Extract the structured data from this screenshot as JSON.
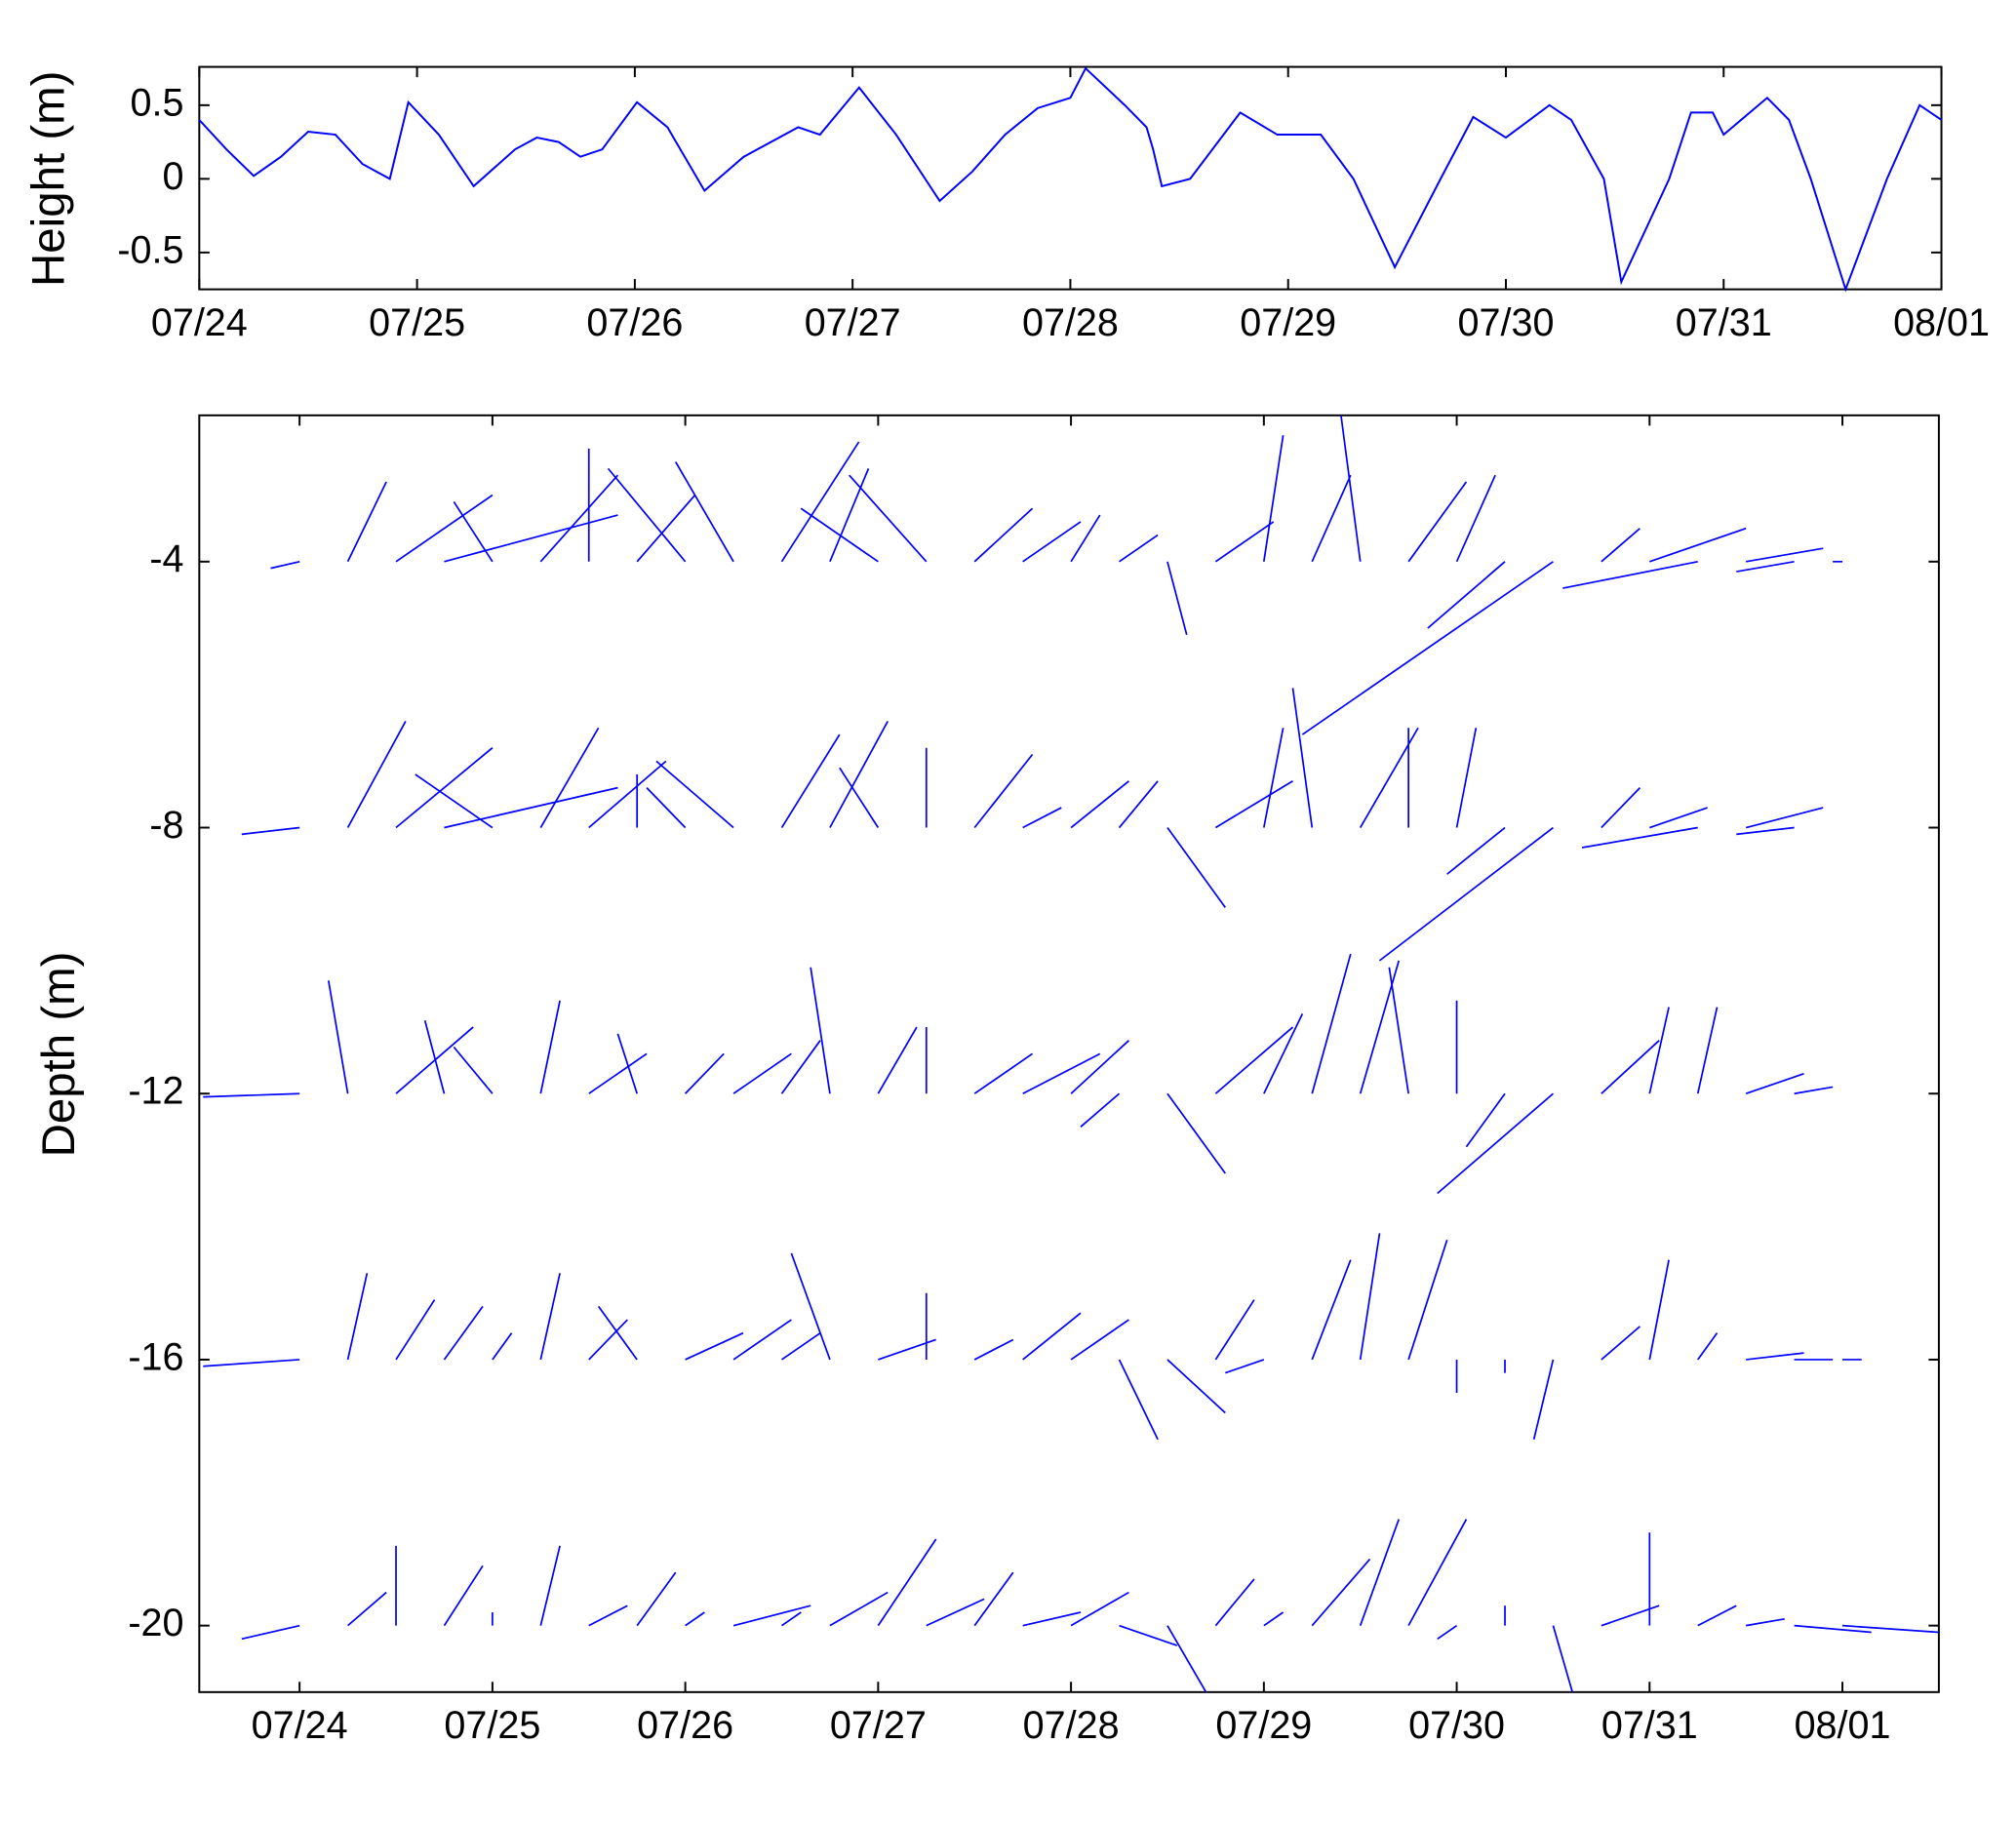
{
  "chart_data": [
    {
      "type": "line",
      "ylabel": "Height (m)",
      "color": "#0000ff",
      "x": [
        0,
        0.125,
        0.25,
        0.375,
        0.5,
        0.625,
        0.75,
        0.875,
        0.96,
        1.1,
        1.26,
        1.45,
        1.55,
        1.65,
        1.75,
        1.85,
        2.01,
        2.15,
        2.32,
        2.5,
        2.75,
        2.85,
        3.03,
        3.2,
        3.4,
        3.55,
        3.7,
        3.85,
        4.0,
        4.07,
        4.25,
        4.35,
        4.38,
        4.42,
        4.55,
        4.78,
        4.95,
        5.15,
        5.3,
        5.49,
        5.7,
        5.85,
        6.0,
        6.2,
        6.3,
        6.45,
        6.53,
        6.75,
        6.85,
        6.95,
        7.0,
        7.2,
        7.3,
        7.4,
        7.56,
        7.75,
        7.9,
        8.0
      ],
      "values": [
        0.4,
        0.2,
        0.02,
        0.15,
        0.32,
        0.3,
        0.1,
        0.0,
        0.52,
        0.3,
        -0.05,
        0.2,
        0.28,
        0.25,
        0.15,
        0.2,
        0.52,
        0.35,
        -0.08,
        0.15,
        0.35,
        0.3,
        0.62,
        0.3,
        -0.15,
        0.05,
        0.3,
        0.48,
        0.55,
        0.75,
        0.5,
        0.35,
        0.2,
        -0.05,
        0.0,
        0.45,
        0.3,
        0.3,
        0.0,
        -0.6,
        0.0,
        0.42,
        0.28,
        0.5,
        0.4,
        0.0,
        -0.7,
        0.0,
        0.45,
        0.45,
        0.3,
        0.55,
        0.4,
        0.0,
        -0.75,
        0.0,
        0.5,
        0.4
      ],
      "xlim": [
        0,
        8
      ],
      "ylim": [
        -0.75,
        0.76
      ],
      "yticks": [
        -0.5,
        0,
        0.5
      ],
      "xticks": [
        {
          "value": 0,
          "label": "07/24"
        },
        {
          "value": 1,
          "label": "07/25"
        },
        {
          "value": 2,
          "label": "07/26"
        },
        {
          "value": 3,
          "label": "07/27"
        },
        {
          "value": 4,
          "label": "07/28"
        },
        {
          "value": 5,
          "label": "07/29"
        },
        {
          "value": 6,
          "label": "07/30"
        },
        {
          "value": 7,
          "label": "07/31"
        },
        {
          "value": 8,
          "label": "08/01"
        }
      ]
    },
    {
      "type": "stick",
      "ylabel": "Depth (m)",
      "color": "#0000ff",
      "x": [
        0,
        0.25,
        0.5,
        0.75,
        1,
        1.25,
        1.5,
        1.75,
        2,
        2.25,
        2.5,
        2.75,
        3,
        3.25,
        3.5,
        3.75,
        4,
        4.25,
        4.5,
        4.75,
        5,
        5.25,
        5.5,
        5.75,
        6,
        6.25,
        6.5,
        6.75,
        7,
        7.25,
        7.5,
        7.75,
        8
      ],
      "series": [
        {
          "depth": -4,
          "u": [
            -0.15,
            0.2,
            0.5,
            0.9,
            -0.2,
            0.4,
            0.0,
            0.3,
            -0.4,
            -0.3,
            0.4,
            0.2,
            -0.4,
            -0.4,
            0.3,
            0.3,
            0.15,
            0.2,
            0.1,
            0.3,
            0.1,
            0.2,
            -0.1,
            0.3,
            0.2,
            -0.4,
            -1.3,
            0.2,
            0.5,
            -0.7,
            0.4,
            -0.3,
            -0.05
          ],
          "v": [
            -0.1,
            1.2,
            1.0,
            0.7,
            0.9,
            1.3,
            1.7,
            1.0,
            1.4,
            1.5,
            1.8,
            1.4,
            0.8,
            1.3,
            0.8,
            0.6,
            0.7,
            0.4,
            -1.1,
            0.6,
            1.9,
            1.3,
            2.2,
            1.2,
            1.3,
            -1.0,
            -2.6,
            0.5,
            0.5,
            -0.4,
            0.2,
            -0.15,
            0.0
          ]
        },
        {
          "depth": -8,
          "u": [
            -0.3,
            0.3,
            0.5,
            0.9,
            -0.4,
            0.3,
            0.4,
            0.0,
            -0.2,
            -0.4,
            0.3,
            0.3,
            -0.2,
            0.0,
            0.3,
            0.2,
            0.3,
            0.2,
            0.3,
            0.4,
            0.1,
            -0.1,
            0.3,
            0.0,
            0.1,
            -0.3,
            -0.9,
            0.2,
            0.3,
            -0.6,
            0.4,
            -0.3,
            0.0
          ],
          "v": [
            -0.1,
            1.6,
            1.2,
            0.6,
            0.8,
            1.5,
            1.0,
            0.8,
            0.6,
            1.0,
            1.4,
            1.6,
            0.9,
            1.2,
            1.1,
            0.3,
            0.7,
            0.7,
            -1.2,
            0.7,
            1.5,
            2.1,
            1.5,
            1.5,
            1.5,
            -0.7,
            -2.0,
            0.6,
            0.3,
            -0.3,
            0.3,
            -0.1,
            0.0
          ]
        },
        {
          "depth": -12,
          "u": [
            -0.5,
            -0.1,
            0.4,
            -0.1,
            -0.2,
            0.1,
            0.3,
            -0.1,
            0.2,
            0.3,
            0.2,
            -0.1,
            0.2,
            0.0,
            0.3,
            0.4,
            0.3,
            -0.2,
            0.3,
            0.4,
            0.2,
            0.2,
            0.2,
            -0.1,
            0.0,
            -0.2,
            -0.6,
            0.3,
            0.1,
            0.1,
            0.3,
            0.2,
            0.0
          ],
          "v": [
            -0.05,
            1.7,
            1.0,
            1.1,
            0.7,
            1.4,
            0.6,
            0.9,
            0.6,
            0.6,
            0.8,
            1.9,
            1.0,
            1.0,
            0.6,
            0.6,
            0.8,
            -0.5,
            -1.2,
            1.0,
            1.2,
            2.1,
            2.0,
            1.9,
            1.4,
            -0.8,
            -1.5,
            0.8,
            1.3,
            1.3,
            0.3,
            0.1,
            0.0
          ]
        },
        {
          "depth": -16,
          "u": [
            -0.5,
            0.1,
            0.2,
            0.2,
            0.1,
            0.1,
            0.2,
            -0.2,
            0.3,
            0.3,
            0.2,
            -0.2,
            0.3,
            0.0,
            0.2,
            0.3,
            0.3,
            0.2,
            0.3,
            0.2,
            -0.2,
            0.2,
            0.1,
            0.2,
            0.0,
            0.0,
            -0.1,
            0.2,
            0.1,
            0.1,
            0.3,
            0.2,
            0.1
          ],
          "v": [
            -0.1,
            1.3,
            0.9,
            0.8,
            0.4,
            1.3,
            0.6,
            0.8,
            0.4,
            0.6,
            0.4,
            1.6,
            0.3,
            1.0,
            0.3,
            0.7,
            0.6,
            -1.2,
            -0.8,
            0.9,
            -0.2,
            1.5,
            1.9,
            1.8,
            -0.5,
            -0.2,
            -1.2,
            0.5,
            1.5,
            0.4,
            0.1,
            0.0,
            0.0
          ]
        },
        {
          "depth": -20,
          "u": [
            -0.3,
            0.2,
            0.0,
            0.2,
            0.0,
            0.1,
            0.2,
            0.2,
            0.1,
            0.4,
            0.1,
            0.3,
            0.3,
            0.3,
            0.2,
            0.3,
            0.3,
            0.3,
            0.2,
            0.2,
            0.1,
            0.3,
            0.2,
            0.3,
            -0.1,
            0.0,
            0.1,
            0.3,
            0.0,
            0.2,
            0.2,
            0.4,
            0.5
          ],
          "v": [
            -0.2,
            0.5,
            1.2,
            0.9,
            0.2,
            1.2,
            0.3,
            0.8,
            0.2,
            0.3,
            0.2,
            0.5,
            1.3,
            0.4,
            0.8,
            0.2,
            0.5,
            -0.3,
            -1.0,
            0.7,
            0.2,
            1.0,
            1.6,
            1.6,
            -0.2,
            0.3,
            -1.0,
            0.3,
            1.4,
            0.3,
            0.1,
            -0.1,
            -0.1
          ]
        }
      ],
      "xlim": [
        -0.52,
        8.5
      ],
      "ylim": [
        -21,
        -1.8
      ],
      "yticks": [
        -20,
        -16,
        -12,
        -8,
        -4
      ],
      "xticks": [
        {
          "value": 0,
          "label": "07/24"
        },
        {
          "value": 1,
          "label": "07/25"
        },
        {
          "value": 2,
          "label": "07/26"
        },
        {
          "value": 3,
          "label": "07/27"
        },
        {
          "value": 4,
          "label": "07/28"
        },
        {
          "value": 5,
          "label": "07/29"
        },
        {
          "value": 6,
          "label": "07/30"
        },
        {
          "value": 7,
          "label": "07/31"
        },
        {
          "value": 8,
          "label": "08/01"
        }
      ]
    }
  ]
}
